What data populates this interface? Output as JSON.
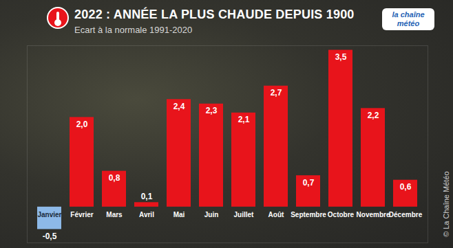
{
  "chart_data": {
    "type": "bar",
    "title": "2022 : ANNÉE LA PLUS CHAUDE DEPUIS 1900",
    "subtitle": "Ecart à la normale 1991-2020",
    "logo": "la chaîne météo",
    "credit": "© La Chaîne Météo",
    "categories": [
      "Janvier",
      "Février",
      "Mars",
      "Avril",
      "Mai",
      "Juin",
      "Juillet",
      "Août",
      "Septembre",
      "Octobre",
      "Novembre",
      "Décembre"
    ],
    "values": [
      -0.5,
      2.0,
      0.8,
      0.1,
      2.4,
      2.3,
      2.1,
      2.7,
      0.7,
      3.5,
      2.2,
      0.6
    ],
    "value_labels": [
      "-0,5",
      "2,0",
      "0,8",
      "0,1",
      "2,4",
      "2,3",
      "2,1",
      "2,7",
      "0,7",
      "3,5",
      "2,2",
      "0,6"
    ],
    "colors": [
      "#8db9e8",
      "#e8141b",
      "#e8141b",
      "#e8141b",
      "#e8141b",
      "#e8141b",
      "#e8141b",
      "#e8141b",
      "#e8141b",
      "#e8141b",
      "#e8141b",
      "#e8141b"
    ],
    "ylim": [
      -0.8,
      3.6
    ],
    "data_labels": true,
    "tick_labels": false,
    "grid": false
  }
}
